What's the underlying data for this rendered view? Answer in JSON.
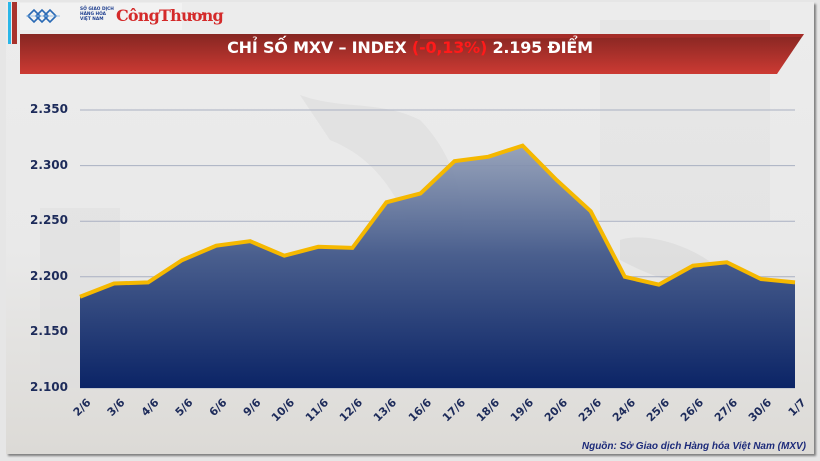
{
  "header": {
    "logo_org_lines": [
      "SỞ GIAO DỊCH",
      "HÀNG HÓA",
      "VIỆT NAM"
    ],
    "logo_brand": "CôngThương",
    "title_prefix": "CHỈ SỐ MXV – INDEX ",
    "title_change": "(-0,13%)",
    "title_suffix": " 2.195 ĐIỂM"
  },
  "colors": {
    "title_band": "#b32f2a",
    "change_negative": "#ff1a1a",
    "area_fill_top": "#8e9bb5",
    "area_fill_bottom": "#0b2466",
    "line": "#f5b800",
    "axis_text": "#1d2b5a"
  },
  "footer": {
    "source": "Nguồn: Sở Giao dịch Hàng hóa Việt Nam (MXV)"
  },
  "chart_data": {
    "type": "area",
    "title": "CHỈ SỐ MXV – INDEX (-0,13%) 2.195 ĐIỂM",
    "xlabel": "",
    "ylabel": "",
    "ylim": [
      2.1,
      2.35
    ],
    "yticks": [
      "2.350",
      "2.300",
      "2.250",
      "2.200",
      "2.150",
      "2.100"
    ],
    "ytick_values": [
      2.35,
      2.3,
      2.25,
      2.2,
      2.15,
      2.1
    ],
    "grid": true,
    "legend": "none",
    "categories": [
      "2/6",
      "3/6",
      "4/6",
      "5/6",
      "6/6",
      "9/6",
      "10/6",
      "11/6",
      "12/6",
      "13/6",
      "16/6",
      "17/6",
      "18/6",
      "19/6",
      "20/6",
      "23/6",
      "24/6",
      "25/6",
      "26/6",
      "27/6",
      "30/6",
      "1/7"
    ],
    "series": [
      {
        "name": "MXV-Index",
        "values": [
          2.182,
          2.194,
          2.195,
          2.215,
          2.228,
          2.232,
          2.219,
          2.227,
          2.226,
          2.267,
          2.275,
          2.304,
          2.308,
          2.318,
          2.287,
          2.259,
          2.2,
          2.193,
          2.21,
          2.213,
          2.198,
          2.195
        ]
      }
    ],
    "source": "Nguồn: Sở Giao dịch Hàng hóa Việt Nam (MXV)"
  }
}
